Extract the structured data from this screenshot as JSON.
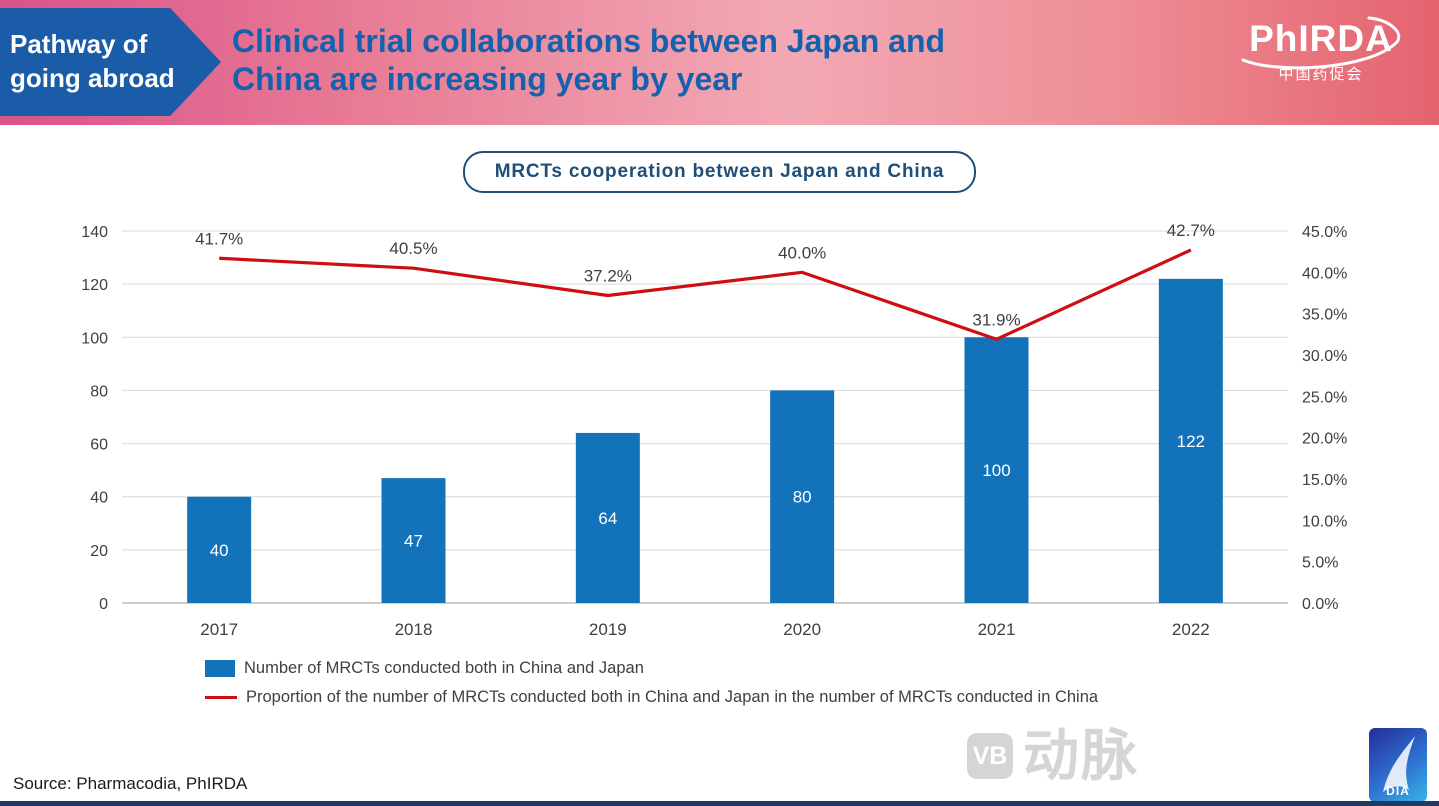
{
  "header": {
    "ribbon": {
      "line1": "Pathway of",
      "line2": "going abroad"
    },
    "title": {
      "line1": "Clinical trial collaborations between Japan and",
      "line2": "China are increasing year by year"
    },
    "logo": {
      "name": "PhIRDA",
      "subtitle": "中国药促会"
    }
  },
  "chart_title": "MRCTs cooperation between Japan and China",
  "chart_data": {
    "type": "bar",
    "title": "MRCTs cooperation between Japan and China",
    "categories": [
      "2017",
      "2018",
      "2019",
      "2020",
      "2021",
      "2022"
    ],
    "series": [
      {
        "name": "Number of MRCTs conducted both in China and Japan",
        "type": "bar",
        "axis": "left",
        "values": [
          40,
          47,
          64,
          80,
          100,
          122
        ],
        "color": "#1272BA"
      },
      {
        "name": "Proportion of the number of MRCTs conducted both in China and Japan in the number of MRCTs conducted in China",
        "type": "line",
        "axis": "right",
        "values": [
          41.7,
          40.5,
          37.2,
          40.0,
          31.9,
          42.7
        ],
        "labels": [
          "41.7%",
          "40.5%",
          "37.2%",
          "40.0%",
          "31.9%",
          "42.7%"
        ],
        "color": "#CE0E12"
      }
    ],
    "left_axis": {
      "min": 0,
      "max": 140,
      "step": 20
    },
    "right_axis": {
      "min": 0,
      "max": 45,
      "step": 5,
      "suffix": "%",
      "decimals": 1
    },
    "grid": true,
    "legend_position": "bottom"
  },
  "footer": {
    "source": "Source: Pharmacodia, PhIRDA",
    "watermark_badge": "VB",
    "watermark_text": "动脉",
    "corner_logo_text": "DIA"
  },
  "colors": {
    "bar": "#1272BA",
    "line": "#CE0E12",
    "title_blue": "#1462AE",
    "ribbon_blue": "#1A5CA8"
  }
}
